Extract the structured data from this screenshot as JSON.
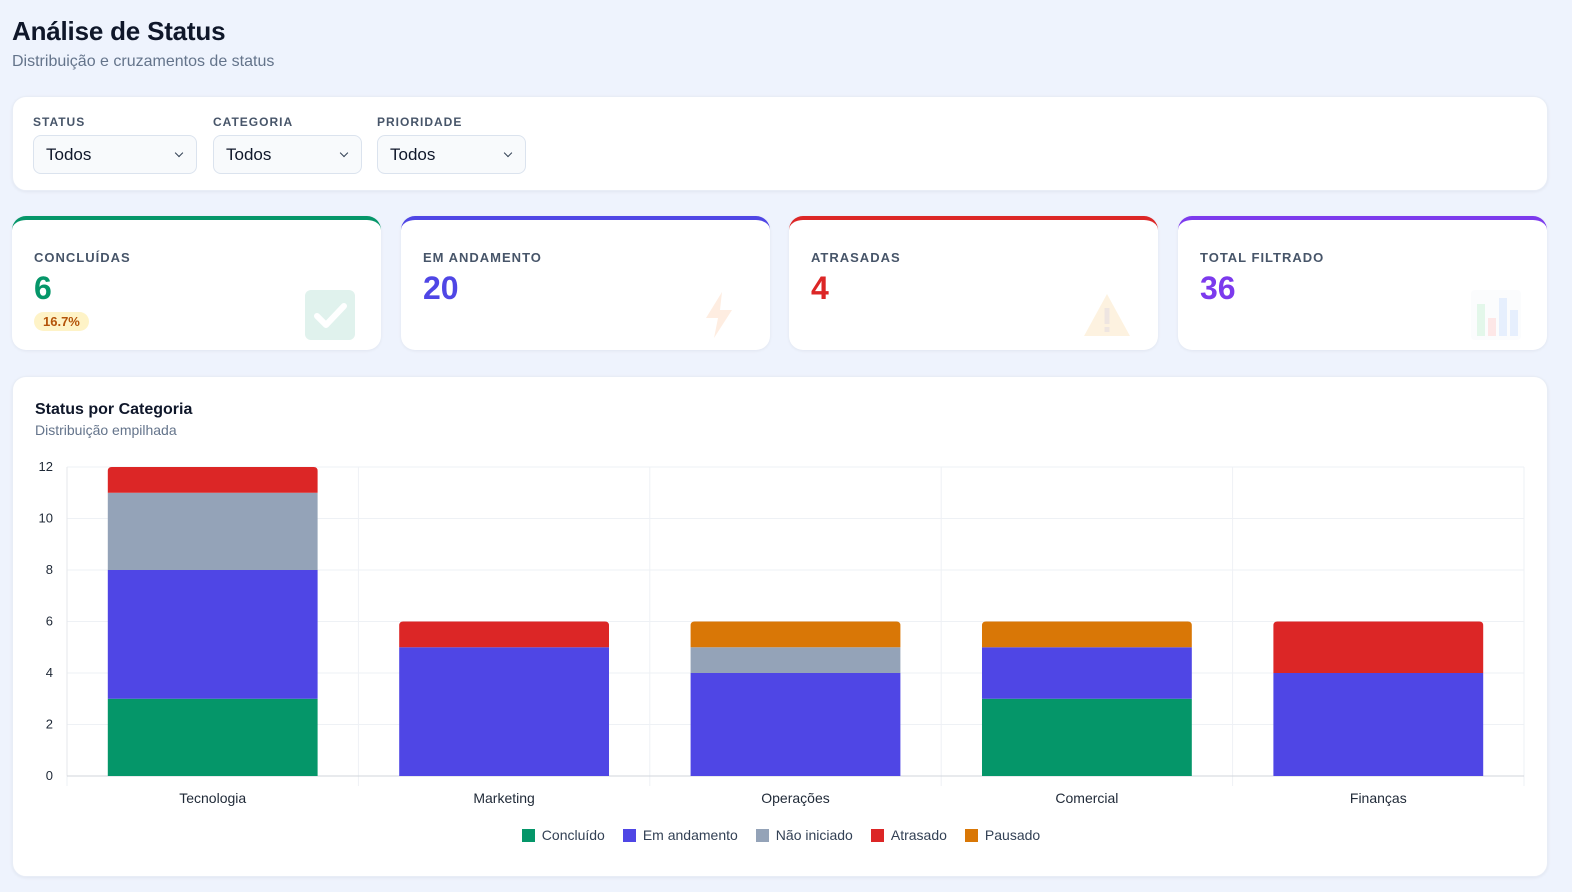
{
  "header": {
    "title": "Análise de Status",
    "subtitle": "Distribuição e cruzamentos de status"
  },
  "filters": [
    {
      "label": "STATUS",
      "value": "Todos"
    },
    {
      "label": "CATEGORIA",
      "value": "Todos"
    },
    {
      "label": "PRIORIDADE",
      "value": "Todos"
    }
  ],
  "kpis": [
    {
      "label": "CONCLUÍDAS",
      "value": "6",
      "badge": "16.7%",
      "color": "#059669",
      "icon": "check-icon"
    },
    {
      "label": "EM ANDAMENTO",
      "value": "20",
      "color": "#4f46e5",
      "icon": "lightning-icon"
    },
    {
      "label": "ATRASADAS",
      "value": "4",
      "color": "#dc2626",
      "icon": "warning-icon"
    },
    {
      "label": "TOTAL FILTRADO",
      "value": "36",
      "color": "#7c3aed",
      "icon": "bar-chart-icon"
    }
  ],
  "chart": {
    "title": "Status por Categoria",
    "subtitle": "Distribuição empilhada"
  },
  "chart_data": {
    "type": "bar",
    "stacked": true,
    "categories": [
      "Tecnologia",
      "Marketing",
      "Operações",
      "Comercial",
      "Finanças"
    ],
    "series": [
      {
        "name": "Concluído",
        "color": "#059669",
        "values": [
          3,
          0,
          0,
          3,
          0
        ]
      },
      {
        "name": "Em andamento",
        "color": "#4f46e5",
        "values": [
          5,
          5,
          4,
          2,
          4
        ]
      },
      {
        "name": "Não iniciado",
        "color": "#94a3b8",
        "values": [
          3,
          0,
          1,
          0,
          0
        ]
      },
      {
        "name": "Atrasado",
        "color": "#dc2626",
        "values": [
          1,
          1,
          0,
          0,
          2
        ]
      },
      {
        "name": "Pausado",
        "color": "#d97706",
        "values": [
          0,
          0,
          1,
          1,
          0
        ]
      }
    ],
    "ylim": [
      0,
      12
    ],
    "yticks": [
      0,
      2,
      4,
      6,
      8,
      10,
      12
    ],
    "grid": true,
    "legend": "bottom-center"
  }
}
